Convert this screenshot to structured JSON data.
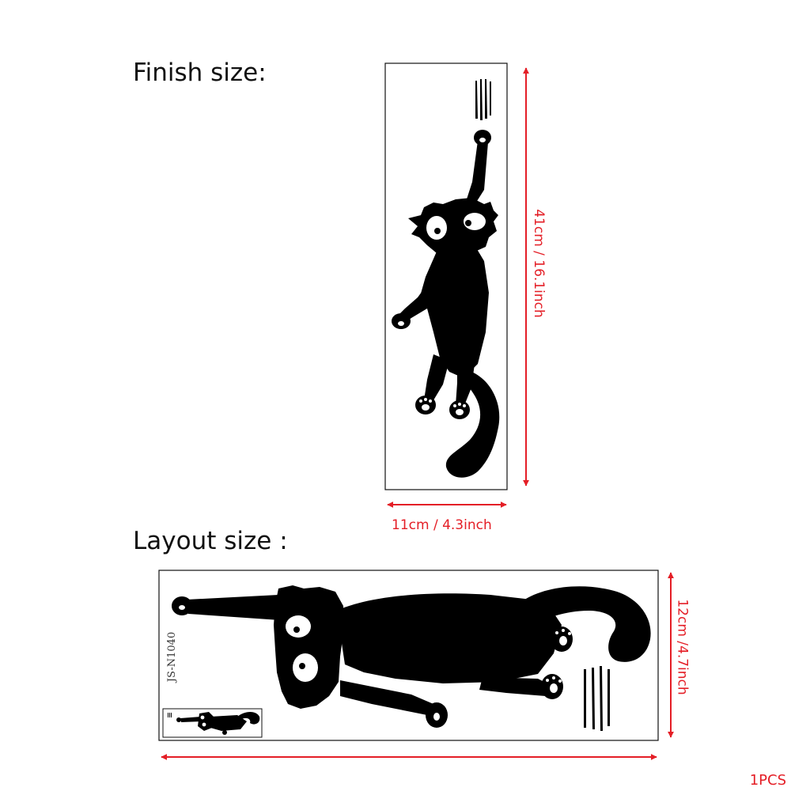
{
  "finish": {
    "heading": "Finish size:",
    "height_label": "41cm / 16.1inch",
    "width_label": "11cm / 4.3inch"
  },
  "layout": {
    "heading": "Layout size :",
    "height_label": "12cm /4.7inch",
    "product_code": "JS-N1040"
  },
  "quantity": "1PCS",
  "colors": {
    "dimension": "#e41e26",
    "silhouette": "#000000",
    "text": "#111111"
  }
}
